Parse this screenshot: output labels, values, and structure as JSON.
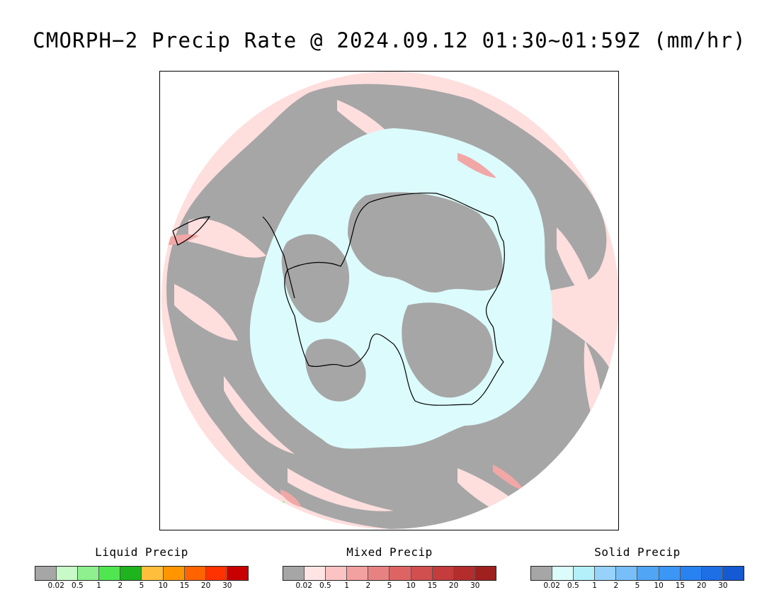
{
  "title": "CMORPH−2 Precip Rate @ 2024.09.12 01:30~01:59Z (mm/hr)",
  "map": {
    "projection": "south polar stereographic",
    "colors": {
      "none": "#ffffff",
      "trace": "#a6a6a6",
      "mixed_light": "#ffdede",
      "solid_light": "#dcfbfc",
      "mixed_moderate": "#f2a7a7",
      "liquid_light": "#8ef08e",
      "coastline": "#000000"
    }
  },
  "legends": [
    {
      "title": "Liquid Precip",
      "ticks": [
        "0.02",
        "0.5",
        "1",
        "2",
        "5",
        "10",
        "15",
        "20",
        "30"
      ],
      "colors": [
        "#a6a6a6",
        "#c8fac8",
        "#8ef08e",
        "#50e650",
        "#1eb41e",
        "#ffbe3c",
        "#ff9600",
        "#ff6400",
        "#ff3200",
        "#c80000"
      ]
    },
    {
      "title": "Mixed Precip",
      "ticks": [
        "0.02",
        "0.5",
        "1",
        "2",
        "5",
        "10",
        "15",
        "20",
        "30"
      ],
      "colors": [
        "#a6a6a6",
        "#ffe4e4",
        "#fbc3c3",
        "#f2a0a0",
        "#e88282",
        "#de6464",
        "#d24f4f",
        "#c43c3c",
        "#b42d2d",
        "#a02020"
      ]
    },
    {
      "title": "Solid Precip",
      "ticks": [
        "0.02",
        "0.5",
        "1",
        "2",
        "5",
        "10",
        "15",
        "20",
        "30"
      ],
      "colors": [
        "#a6a6a6",
        "#dcfcfc",
        "#b4f0fa",
        "#96d2fa",
        "#78bef8",
        "#50a5f5",
        "#3c96f5",
        "#2882f0",
        "#1e6ee6",
        "#145ad2"
      ]
    }
  ]
}
